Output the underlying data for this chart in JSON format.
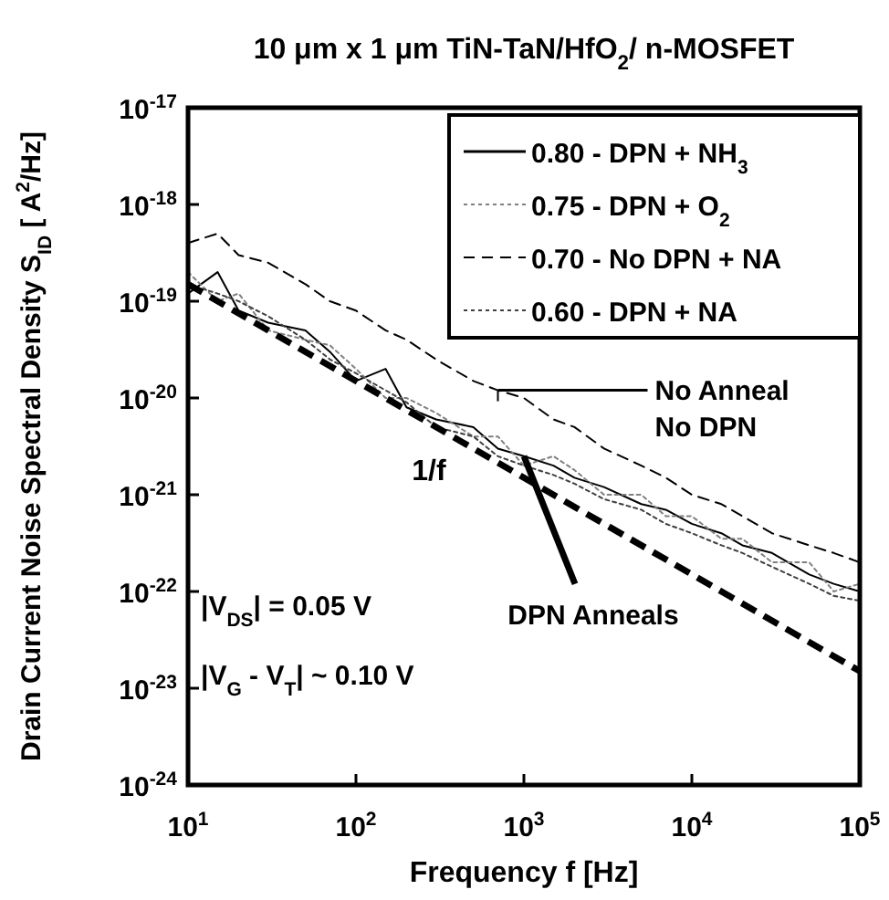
{
  "chart_data": {
    "type": "line",
    "title": "10 μm x 1 μm TiN-TaN/HfO$_{2}$/ n-MOSFET",
    "xlabel": "Frequency f [Hz]",
    "ylabel": "Drain Current Noise Spectral Density S$_{ID}$ [ A$^{2}$/Hz]",
    "x": [
      10,
      15,
      20,
      30,
      50,
      70,
      100,
      150,
      200,
      300,
      500,
      700,
      1000,
      1500,
      2000,
      3000,
      5000,
      7000,
      10000,
      15000,
      20000,
      30000,
      50000,
      70000,
      100000
    ],
    "series": [
      {
        "name": "0.80 - DPN + NH$_{3}$",
        "color": "#000000",
        "line_style": "solid",
        "values": [
          1.2e-19,
          2e-19,
          8e-20,
          6e-20,
          5e-20,
          3e-20,
          1.5e-20,
          2e-20,
          8e-21,
          6e-21,
          5e-21,
          3e-21,
          2.5e-21,
          2e-21,
          1.5e-21,
          1.2e-21,
          8e-22,
          7e-22,
          5e-22,
          4e-22,
          3e-22,
          2.5e-22,
          1.5e-22,
          1.2e-22,
          1e-22
        ]
      },
      {
        "name": "0.75 - DPN + O$_{2}$",
        "color": "#808080",
        "line_style": "dotted",
        "values": [
          2e-19,
          1e-19,
          1.2e-19,
          5e-20,
          4e-20,
          3.5e-20,
          2e-20,
          1e-20,
          1e-20,
          7e-21,
          4e-21,
          4e-21,
          2e-21,
          2.5e-21,
          1.8e-21,
          1e-21,
          1e-21,
          6e-22,
          6e-22,
          3.5e-22,
          3.5e-22,
          2e-22,
          2e-22,
          1e-22,
          1.2e-22
        ]
      },
      {
        "name": "0.70 - No DPN + NA",
        "color": "#000000",
        "line_style": "dashed",
        "values": [
          4e-19,
          5e-19,
          3e-19,
          2.5e-19,
          1.5e-19,
          1e-19,
          8e-20,
          5e-20,
          4e-20,
          2.5e-20,
          1.5e-20,
          1.2e-20,
          1e-20,
          6e-21,
          5e-21,
          3e-21,
          2e-21,
          1.5e-21,
          1e-21,
          8e-22,
          6e-22,
          4e-22,
          3e-22,
          2.5e-22,
          2e-22
        ]
      },
      {
        "name": "0.60 - DPN + NA",
        "color": "#404040",
        "line_style": "dotted",
        "values": [
          1.5e-19,
          1.2e-19,
          1e-19,
          7e-20,
          4e-20,
          2.5e-20,
          1.8e-20,
          1.2e-20,
          9e-21,
          5e-21,
          4e-21,
          2.5e-21,
          2e-21,
          1.6e-21,
          1.3e-21,
          9e-22,
          7e-22,
          5e-22,
          4e-22,
          3e-22,
          2.5e-22,
          1.8e-22,
          1.2e-22,
          9e-23,
          8e-23
        ]
      },
      {
        "type": "line",
        "color": "#000000",
        "line_style": "dashed",
        "x": [
          10,
          100000
        ],
        "values": [
          1.5e-19,
          1.5e-23
        ]
      }
    ],
    "log": "xy",
    "xlim": [
      10,
      100000
    ],
    "ylim": [
      1e-24,
      1e-17
    ],
    "xticks": [
      {
        "value": 10,
        "label": "10$^{1}$"
      },
      {
        "value": 100,
        "label": "10$^{2}$"
      },
      {
        "value": 1000,
        "label": "10$^{3}$"
      },
      {
        "value": 10000,
        "label": "10$^{4}$"
      },
      {
        "value": 100000,
        "label": "10$^{5}$"
      }
    ],
    "yticks": [
      {
        "value": 1e-24,
        "label": "10$^{-24}$"
      },
      {
        "value": 1e-23,
        "label": "10$^{-23}$"
      },
      {
        "value": 1e-22,
        "label": "10$^{-22}$"
      },
      {
        "value": 1e-21,
        "label": "10$^{-21}$"
      },
      {
        "value": 1e-20,
        "label": "10$^{-20}$"
      },
      {
        "value": 1e-19,
        "label": "10$^{-19}$"
      },
      {
        "value": 1e-18,
        "label": "10$^{-18}$"
      },
      {
        "value": 1e-17,
        "label": "10$^{-17}$"
      }
    ],
    "grid": false,
    "legend": "top right",
    "marker": "none",
    "annotations": [
      "1/f",
      {
        "text": "No Anneal\nNo DPN",
        "x": 700,
        "y": 1.2e-20
      },
      {
        "text": "DPN Anneals",
        "x": 1000,
        "y": 2.5e-21
      },
      "|V$_{DS}$| = 0.05 V",
      "|V$_{G}$ - V$_{T}$| ~ 0.10 V"
    ]
  }
}
